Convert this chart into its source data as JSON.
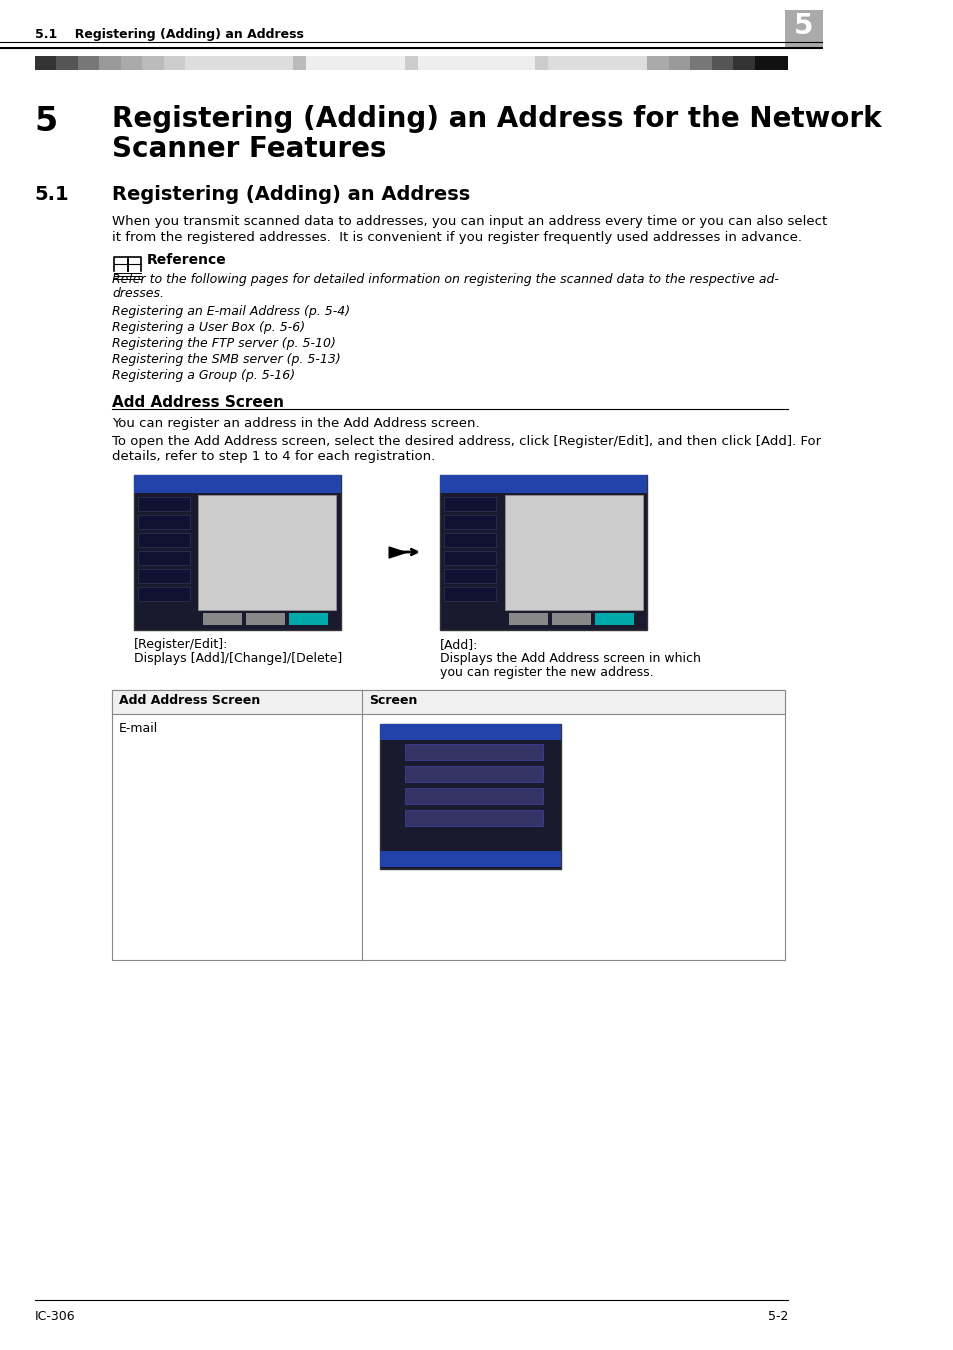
{
  "bg_color": "#ffffff",
  "header_text": "5.1    Registering (Adding) an Address",
  "header_num": "5",
  "chapter_num": "5",
  "chapter_title_line1": "Registering (Adding) an Address for the Network",
  "chapter_title_line2": "Scanner Features",
  "section_num": "5.1",
  "section_title": "Registering (Adding) an Address",
  "body_text": "When you transmit scanned data to addresses, you can input an address every time or you can also select\nit from the registered addresses.  It is convenient if you register frequently used addresses in advance.",
  "ref_title": "Reference",
  "ref_body": "Refer to the following pages for detailed information on registering the scanned data to the respective ad-\ndresses.",
  "ref_items": [
    "Registering an E-mail Address (p. 5-4)",
    "Registering a User Box (p. 5-6)",
    "Registering the FTP server (p. 5-10)",
    "Registering the SMB server (p. 5-13)",
    "Registering a Group (p. 5-16)"
  ],
  "add_screen_title": "Add Address Screen",
  "add_screen_body1": "You can register an address in the Add Address screen.",
  "add_screen_body2": "To open the Add Address screen, select the desired address, click [Register/Edit], and then click [Add]. For\ndetails, refer to step 1 to 4 for each registration.",
  "img1_caption_line1": "[Register/Edit]:",
  "img1_caption_line2": "Displays [Add]/[Change]/[Delete]",
  "img2_caption_line1": "[Add]:",
  "img2_caption_line2": "Displays the Add Address screen in which\nyou can register the new address.",
  "table_col1": "Add Address Screen",
  "table_col2": "Screen",
  "table_row1_col1": "E-mail",
  "footer_left": "IC-306",
  "footer_right": "5-2"
}
